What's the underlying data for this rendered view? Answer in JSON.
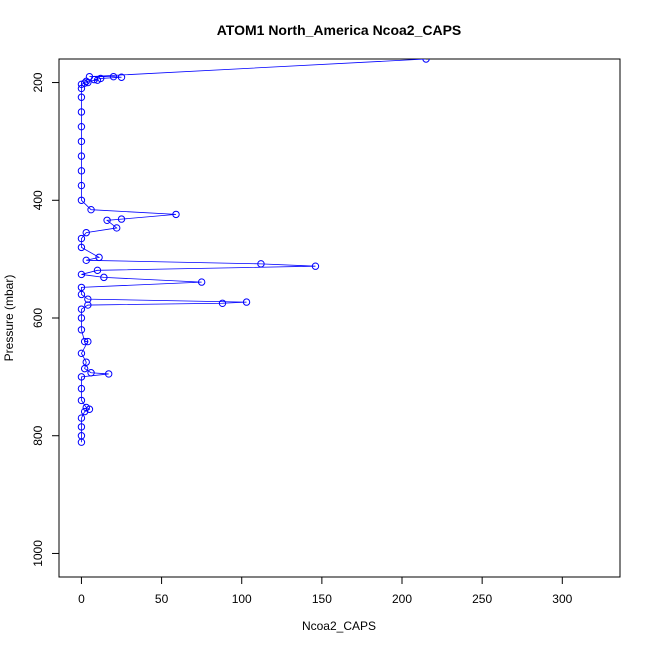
{
  "chart_data": {
    "type": "scatter",
    "title": "ATOM1 North_America Ncoa2_CAPS",
    "xlabel": "Ncoa2_CAPS",
    "ylabel": "Pressure (mbar)",
    "xlim": [
      -14,
      336
    ],
    "ylim": [
      160,
      1040
    ],
    "y_reversed": true,
    "x_ticks": [
      0,
      50,
      100,
      150,
      200,
      250,
      300
    ],
    "x_tick_labels": [
      "0",
      "50",
      "100",
      "150",
      "200",
      "250",
      "300"
    ],
    "y_ticks": [
      200,
      400,
      600,
      800,
      1000
    ],
    "y_tick_labels": [
      "200",
      "400",
      "600",
      "800",
      "1000"
    ],
    "grid": false,
    "color": "#0000ff",
    "series": [
      {
        "values_note": "",
        "points": [
          [
            215,
            160
          ],
          [
            5,
            190
          ],
          [
            20,
            190
          ],
          [
            25,
            191
          ],
          [
            12,
            193
          ],
          [
            8,
            195
          ],
          [
            10,
            196
          ],
          [
            3,
            198
          ],
          [
            4,
            200
          ],
          [
            2,
            201
          ],
          [
            0,
            203
          ],
          [
            0,
            210
          ],
          [
            0,
            225
          ],
          [
            0,
            250
          ],
          [
            0,
            275
          ],
          [
            0,
            300
          ],
          [
            0,
            325
          ],
          [
            0,
            350
          ],
          [
            0,
            375
          ],
          [
            0,
            400
          ],
          [
            6,
            416
          ],
          [
            59,
            424
          ],
          [
            25,
            432
          ],
          [
            16,
            434
          ],
          [
            22,
            447
          ],
          [
            3,
            455
          ],
          [
            0,
            465
          ],
          [
            0,
            480
          ],
          [
            11,
            497
          ],
          [
            3,
            502
          ],
          [
            112,
            508
          ],
          [
            146,
            512
          ],
          [
            10,
            519
          ],
          [
            0,
            526
          ],
          [
            14,
            531
          ],
          [
            75,
            539
          ],
          [
            0,
            548
          ],
          [
            0,
            560
          ],
          [
            4,
            568
          ],
          [
            103,
            573
          ],
          [
            88,
            575
          ],
          [
            4,
            578
          ],
          [
            0,
            585
          ],
          [
            0,
            600
          ],
          [
            0,
            620
          ],
          [
            2,
            640
          ],
          [
            4,
            640
          ],
          [
            0,
            660
          ],
          [
            3,
            675
          ],
          [
            2,
            686
          ],
          [
            6,
            693
          ],
          [
            17,
            695
          ],
          [
            0,
            700
          ],
          [
            0,
            720
          ],
          [
            0,
            740
          ],
          [
            3,
            752
          ],
          [
            5,
            755
          ],
          [
            2,
            759
          ],
          [
            0,
            770
          ],
          [
            0,
            785
          ],
          [
            0,
            800
          ],
          [
            0,
            811
          ]
        ]
      }
    ]
  }
}
